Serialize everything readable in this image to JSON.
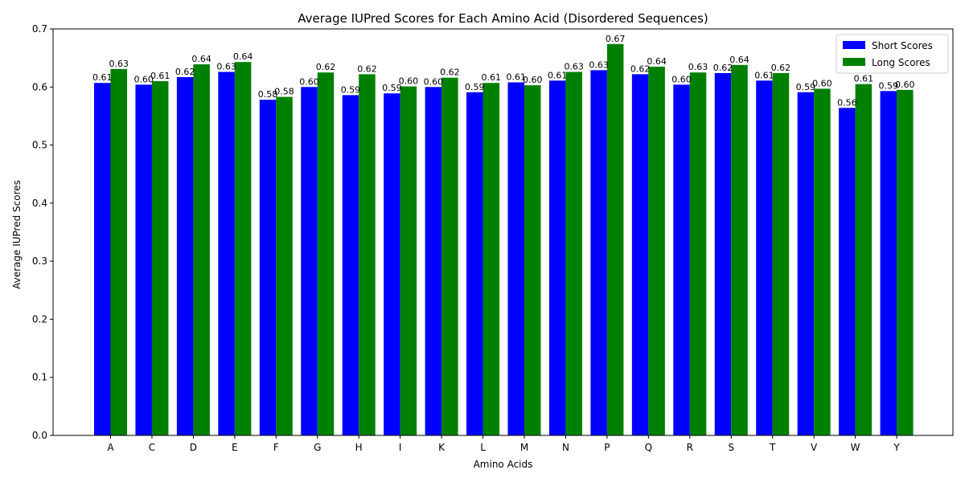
{
  "chart_data": {
    "type": "bar",
    "title": "Average IUPred Scores for Each Amino Acid (Disordered Sequences)",
    "xlabel": "Amino Acids",
    "ylabel": "Average IUPred Scores",
    "ylim": [
      0,
      0.7
    ],
    "yticks": [
      "0.0",
      "0.1",
      "0.2",
      "0.3",
      "0.4",
      "0.5",
      "0.6",
      "0.7"
    ],
    "yticks_values": [
      0,
      0.1,
      0.2,
      0.3,
      0.4,
      0.5,
      0.6,
      0.7
    ],
    "categories": [
      "A",
      "C",
      "D",
      "E",
      "F",
      "G",
      "H",
      "I",
      "K",
      "L",
      "M",
      "N",
      "P",
      "Q",
      "R",
      "S",
      "T",
      "V",
      "W",
      "Y"
    ],
    "series": [
      {
        "name": "Short Scores",
        "color": "#0000ff",
        "values": [
          0.607,
          0.604,
          0.617,
          0.626,
          0.578,
          0.6,
          0.586,
          0.589,
          0.6,
          0.591,
          0.608,
          0.611,
          0.629,
          0.622,
          0.604,
          0.624,
          0.611,
          0.591,
          0.564,
          0.593
        ],
        "labels": [
          "0.61",
          "0.60",
          "0.62",
          "0.63",
          "0.58",
          "0.60",
          "0.59",
          "0.59",
          "0.60",
          "0.59",
          "0.61",
          "0.61",
          "0.63",
          "0.62",
          "0.60",
          "0.62",
          "0.61",
          "0.59",
          "0.56",
          "0.59"
        ]
      },
      {
        "name": "Long Scores",
        "color": "#008000",
        "values": [
          0.631,
          0.61,
          0.639,
          0.643,
          0.583,
          0.625,
          0.622,
          0.601,
          0.616,
          0.607,
          0.603,
          0.626,
          0.674,
          0.635,
          0.625,
          0.638,
          0.624,
          0.597,
          0.605,
          0.595
        ],
        "labels": [
          "0.63",
          "0.61",
          "0.64",
          "0.64",
          "0.58",
          "0.62",
          "0.62",
          "0.60",
          "0.62",
          "0.61",
          "0.60",
          "0.63",
          "0.67",
          "0.64",
          "0.63",
          "0.64",
          "0.62",
          "0.60",
          "0.61",
          "0.60"
        ]
      }
    ],
    "legend_position": "top-right",
    "grid": false
  }
}
